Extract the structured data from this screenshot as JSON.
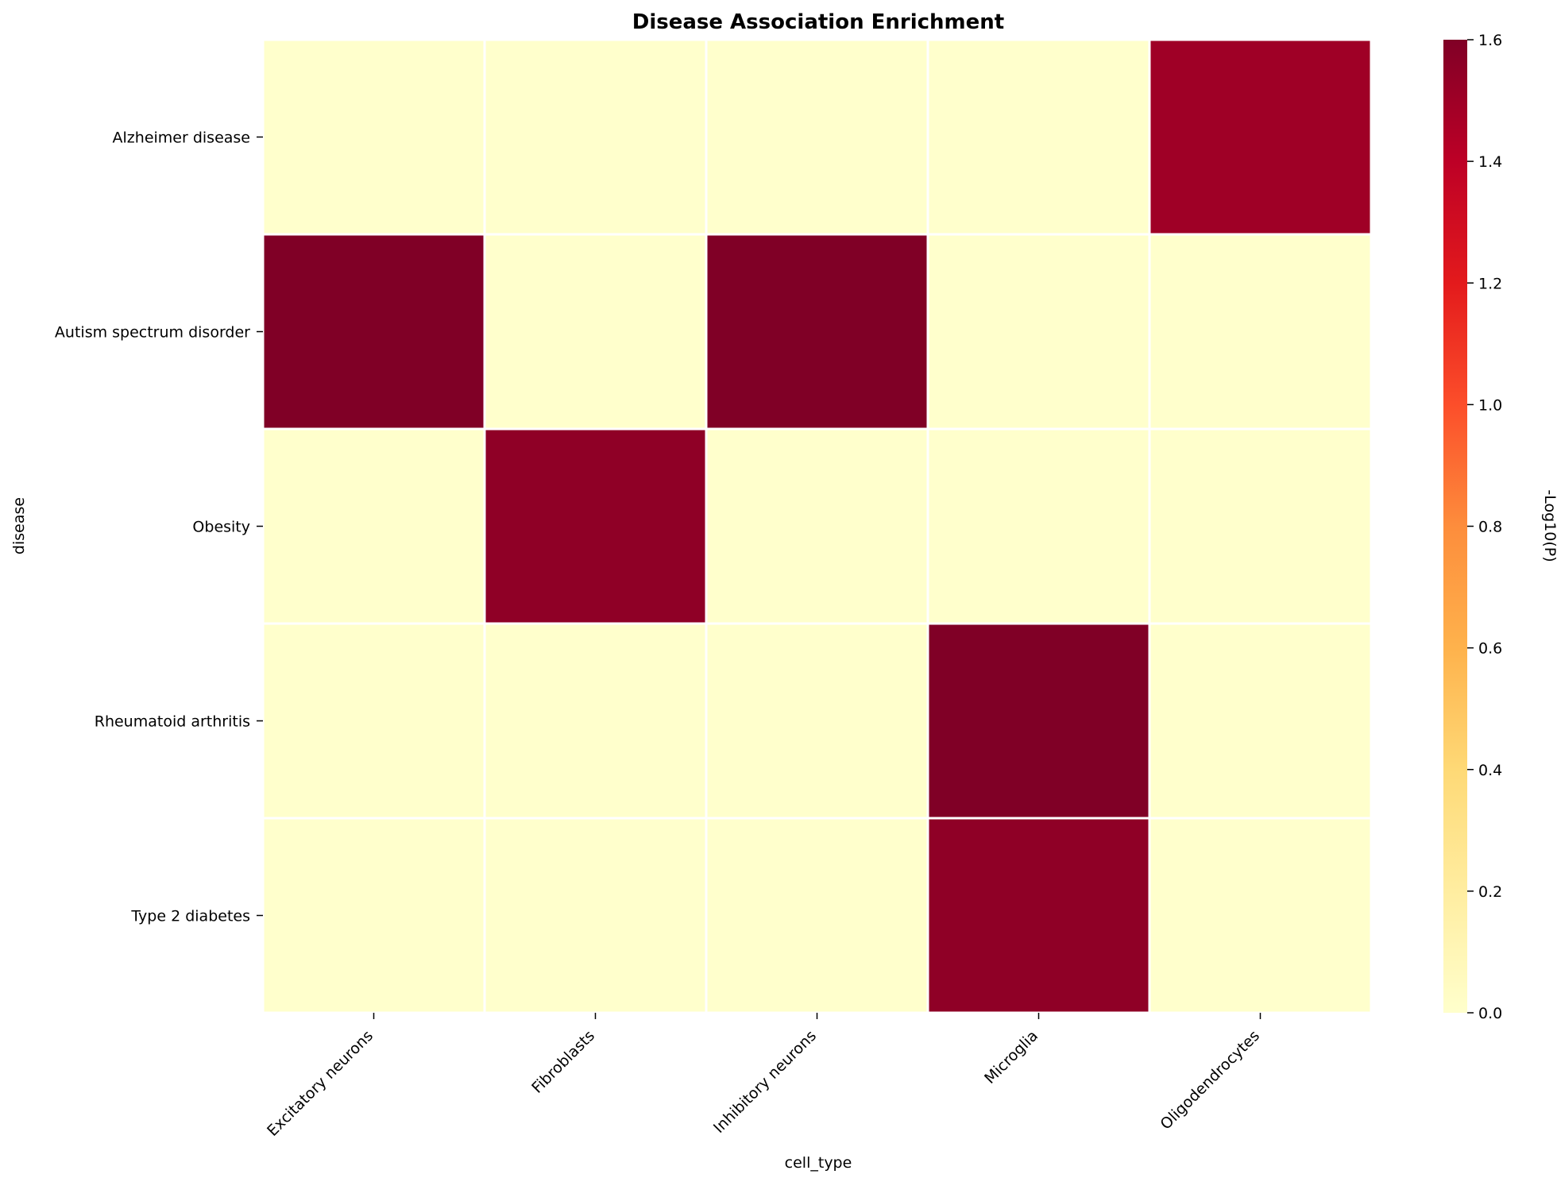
{
  "chart_data": {
    "type": "heatmap",
    "title": "Disease Association Enrichment",
    "xlabel": "cell_type",
    "ylabel": "disease",
    "x_categories": [
      "Excitatory neurons",
      "Fibroblasts",
      "Inhibitory neurons",
      "Microglia",
      "Oligodendrocytes"
    ],
    "y_categories": [
      "Alzheimer disease",
      "Autism spectrum disorder",
      "Obesity",
      "Rheumatoid arthritis",
      "Type 2 diabetes"
    ],
    "values": [
      [
        0,
        0,
        0,
        0,
        1.5
      ],
      [
        1.6,
        0,
        1.6,
        0,
        0
      ],
      [
        0,
        1.55,
        0,
        0,
        0
      ],
      [
        0,
        0,
        0,
        1.6,
        0
      ],
      [
        0,
        0,
        0,
        1.55,
        0
      ]
    ],
    "colorbar": {
      "label": "-Log10(P)",
      "min": 0,
      "max": 1.6,
      "ticks": [
        "0.0",
        "0.2",
        "0.4",
        "0.6",
        "0.8",
        "1.0",
        "1.2",
        "1.4",
        "1.6"
      ],
      "colormap": [
        "#ffffcc",
        "#ffeda0",
        "#fed976",
        "#feb24c",
        "#fd8d3c",
        "#fc4e2a",
        "#e31a1c",
        "#bd0026",
        "#800026"
      ]
    },
    "grid": false,
    "legend": "colorbar-right"
  }
}
